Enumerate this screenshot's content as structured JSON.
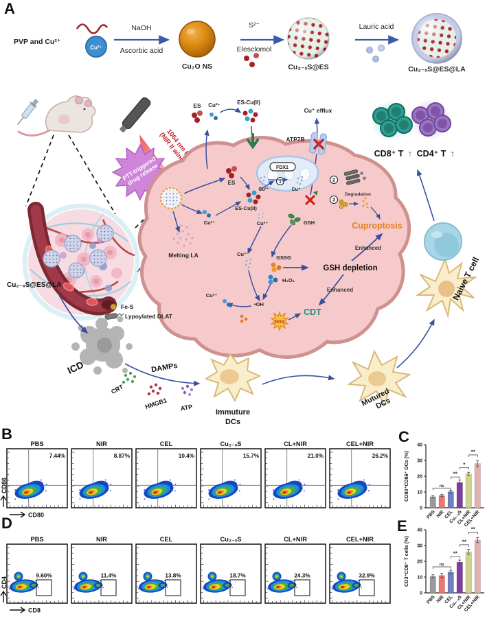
{
  "figure": {
    "a": "A",
    "b": "B",
    "c": "C",
    "d": "D",
    "e": "E"
  },
  "synthesis": {
    "pvp": "PVP and Cu²⁺",
    "cu_ion": "Cu²⁺",
    "naoh": "NaOH",
    "ascorbic": "Ascorbic acid",
    "cu2o": "Cu₂O NS",
    "s2": "S²⁻",
    "elesclomol": "Elesclomol",
    "cuxs_es": "Cu₂₋ₓS@ES",
    "lauric": "Lauric acid",
    "final": "Cu₂₋ₓS@ES@LA"
  },
  "mech": {
    "laser1": "1064 nm laser",
    "laser2": "(NIR II window)",
    "ptt1": "PTT-triggered",
    "ptt2": "drug release",
    "es_out": "ES",
    "cu2_out": "Cu²⁺",
    "escu_out": "ES-Cu(II)",
    "efflux": "Cu⁺ efflux",
    "atp7b": "ATP7B",
    "fdx1": "FDX1",
    "n1": "1",
    "n2": "2",
    "n3": "3",
    "degradation": "Degradation",
    "cu2_mito": "Cu²⁺",
    "cu1_mito": "Cu⁺",
    "es_in": "ES",
    "escu_in": "ES-Cu(II)",
    "cu2_a": "Cu²⁺",
    "cu2_b": "Cu²⁺",
    "cu2_c": "Cu²⁺",
    "cu1": "Cu⁺",
    "gsh": "GSH",
    "gssg": "GSSG",
    "h2o2": "H₂O₂",
    "oh": "•OH",
    "ros": "ROS",
    "cuproptosis": "Cuproptosis",
    "gsh_depletion": "GSH depletion",
    "enhanced_a": "Enhanced",
    "enhanced_b": "Enhanced",
    "cdt": "CDT",
    "melting": "Melting LA",
    "np_label": "Cu₂₋ₓS@ES@LA",
    "fes": "Fe-S",
    "dlat": "Lypoylated DLAT",
    "icd": "ICD",
    "damps": "DAMPs",
    "crt": "CRT",
    "hmgb1": "HMGB1",
    "atp": "ATP",
    "imm1": "Immuture",
    "imm2": "DCs",
    "mat1": "Mutured",
    "mat2": "DCs",
    "naive": "Naive T cell",
    "cd8": "CD8⁺ T",
    "cd4": "CD4⁺ T",
    "up8": "↑",
    "up4": "↑"
  },
  "flow_b": {
    "label": "B",
    "ylabel": "CD86",
    "xlabel": "CD80",
    "groups": [
      {
        "name": "PBS",
        "pct": "7.44%"
      },
      {
        "name": "NIR",
        "pct": "8.87%"
      },
      {
        "name": "CEL",
        "pct": "10.4%"
      },
      {
        "name": "Cu₂₋ₓS",
        "pct": "15.7%"
      },
      {
        "name": "CL+NIR",
        "pct": "21.0%"
      },
      {
        "name": "CEL+NIR",
        "pct": "26.2%"
      }
    ]
  },
  "flow_d": {
    "label": "D",
    "ylabel": "CD4",
    "xlabel": "CD8",
    "groups": [
      {
        "name": "PBS",
        "pct": "9.60%"
      },
      {
        "name": "NIR",
        "pct": "11.4%"
      },
      {
        "name": "CEL",
        "pct": "13.8%"
      },
      {
        "name": "Cu₂₋ₓS",
        "pct": "18.7%"
      },
      {
        "name": "CL+NIR",
        "pct": "24.3%"
      },
      {
        "name": "CEL+NIR",
        "pct": "32.9%"
      }
    ]
  },
  "chart_data": [
    {
      "id": "C",
      "type": "bar",
      "categories": [
        "PBS",
        "NIR",
        "CEL",
        "Cu₂₋ₓS",
        "CL+NIR",
        "CEL+NIR"
      ],
      "values": [
        7.0,
        7.8,
        10.2,
        16.0,
        21.5,
        28.0
      ],
      "errors": [
        0.8,
        0.7,
        0.9,
        1.6,
        1.0,
        1.9
      ],
      "ylabel": "CD80⁺CD86⁺ DCs (%)",
      "ylim": [
        0,
        40
      ],
      "yticks": [
        0,
        10,
        20,
        30,
        40
      ],
      "bar_colors": [
        "#9b9b9b",
        "#f0756d",
        "#6f7fc0",
        "#7f3f9f",
        "#cfd28f",
        "#e0b3ae"
      ],
      "significance": [
        {
          "from": 0,
          "to": 2,
          "label": "ns",
          "y": 12.5
        },
        {
          "from": 2,
          "to": 3,
          "label": "**",
          "y": 19.5
        },
        {
          "from": 3,
          "to": 4,
          "label": "*",
          "y": 25.5
        },
        {
          "from": 4,
          "to": 5,
          "label": "**",
          "y": 33.5
        }
      ]
    },
    {
      "id": "E",
      "type": "bar",
      "categories": [
        "PBS",
        "NIR",
        "CEL",
        "Cu₂₋ₓS",
        "CL+NIR",
        "CEL+NIR"
      ],
      "values": [
        10.5,
        11.0,
        13.2,
        19.5,
        26.0,
        33.5
      ],
      "errors": [
        1.0,
        1.3,
        1.1,
        1.3,
        1.6,
        1.6
      ],
      "ylabel": "CD3⁺CD8⁺ T cells (%)",
      "ylim": [
        0,
        40
      ],
      "yticks": [
        0,
        10,
        20,
        30,
        40
      ],
      "bar_colors": [
        "#9b9b9b",
        "#f0756d",
        "#6f7fc0",
        "#7f3f9f",
        "#cfd28f",
        "#e0b3ae"
      ],
      "significance": [
        {
          "from": 0,
          "to": 2,
          "label": "ns",
          "y": 16.5
        },
        {
          "from": 2,
          "to": 3,
          "label": "**",
          "y": 23.0
        },
        {
          "from": 3,
          "to": 4,
          "label": "**",
          "y": 30.5
        },
        {
          "from": 4,
          "to": 5,
          "label": "**",
          "y": 38.5
        }
      ]
    }
  ],
  "colors": {
    "arrow": "#3b4fa0",
    "cell_fill": "#f6caca",
    "cell_edge": "#cf9090",
    "cuproptosis": "#e87d1e",
    "cdt": "#1d8f7f",
    "laser_text": "#c1272d",
    "bar_gray": "#9b9b9b",
    "bar_red": "#f0756d",
    "bar_blue": "#6f7fc0",
    "bar_purple": "#7f3f9f",
    "bar_olive": "#cfd28f",
    "bar_rose": "#e0b3ae"
  }
}
